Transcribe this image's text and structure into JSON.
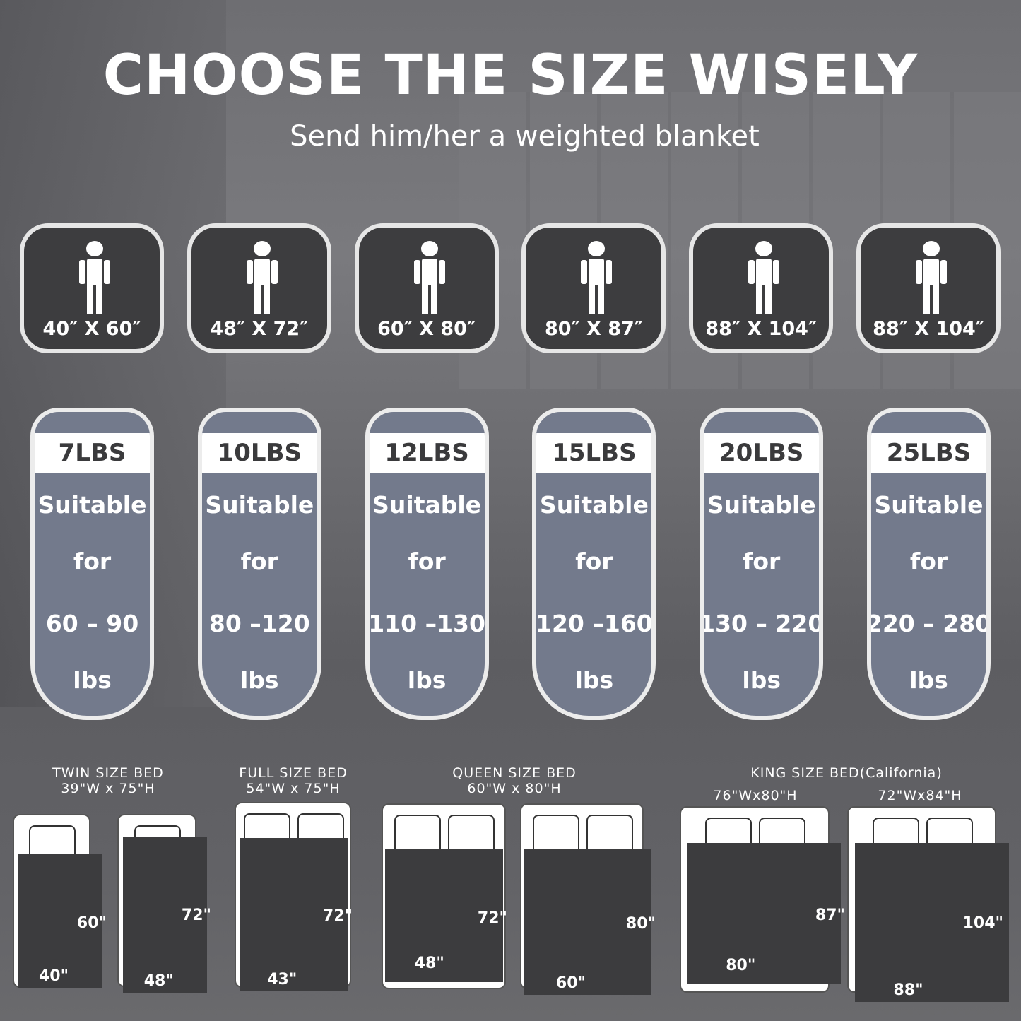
{
  "header": {
    "title": "CHOOSE THE SIZE WISELY",
    "subtitle": "Send him/her a weighted blanket"
  },
  "sizes": [
    {
      "label": "40″ X 60″",
      "icon": "person-icon"
    },
    {
      "label": "48″ X 72″",
      "icon": "person-icon"
    },
    {
      "label": "60″ X 80″",
      "icon": "person-icon"
    },
    {
      "label": "80″ X 87″",
      "icon": "person-icon"
    },
    {
      "label": "88″ X 104″",
      "icon": "person-icon"
    },
    {
      "label": "88″ X 104″",
      "icon": "person-icon"
    }
  ],
  "weights": [
    {
      "weight": "7LBS",
      "l1": "Suitable",
      "l2": "for",
      "range": "60 – 90",
      "unit": "lbs"
    },
    {
      "weight": "10LBS",
      "l1": "Suitable",
      "l2": "for",
      "range": "80 –120",
      "unit": "lbs"
    },
    {
      "weight": "12LBS",
      "l1": "Suitable",
      "l2": "for",
      "range": "110 –130",
      "unit": "lbs"
    },
    {
      "weight": "15LBS",
      "l1": "Suitable",
      "l2": "for",
      "range": "120 –160",
      "unit": "lbs"
    },
    {
      "weight": "20LBS",
      "l1": "Suitable",
      "l2": "for",
      "range": "130 – 220",
      "unit": "lbs"
    },
    {
      "weight": "25LBS",
      "l1": "Suitable",
      "l2": "for",
      "range": "220 – 280",
      "unit": "lbs"
    }
  ],
  "beds": {
    "twin": {
      "name": "TWIN SIZE BED",
      "dims": "39\"W x 75\"H"
    },
    "full": {
      "name": "FULL SIZE BED",
      "dims": "54\"W x 75\"H"
    },
    "queen": {
      "name": "QUEEN SIZE BED",
      "dims": "60\"W x 80\"H"
    },
    "king": {
      "name": "KING SIZE BED(California)",
      "dims1": "76\"Wx80\"H",
      "dims2": "72\"Wx84\"H"
    }
  },
  "blankets": [
    {
      "h": "60\"",
      "w": "40\""
    },
    {
      "h": "72\"",
      "w": "48\""
    },
    {
      "h": "72\"",
      "w": "43\""
    },
    {
      "h": "72\"",
      "w": "48\""
    },
    {
      "h": "80\"",
      "w": "60\""
    },
    {
      "h": "87\"",
      "w": "80\""
    },
    {
      "h": "104\"",
      "w": "88\""
    }
  ],
  "colors": {
    "dark": "#3d3d3f",
    "slate": "#737a8c",
    "white": "#ffffff"
  }
}
